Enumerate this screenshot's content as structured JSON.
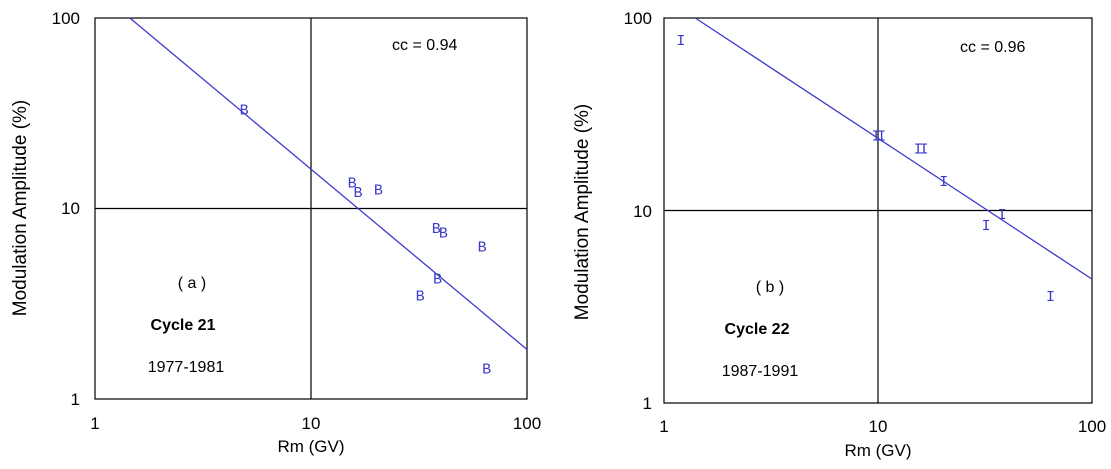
{
  "chart_data": [
    {
      "type": "scatter",
      "panel_label": "( a )",
      "cycle_label": "Cycle 21",
      "years_label": "1977-1981",
      "cc_label": "cc = 0.94",
      "xlabel": "Rm (GV)",
      "ylabel": "Modulation Amplitude (%)",
      "xscale": "log",
      "yscale": "log",
      "xlim": [
        1,
        100
      ],
      "ylim": [
        1,
        100
      ],
      "xticks": [
        "1",
        "10",
        "100"
      ],
      "yticks": [
        "1",
        "10",
        "100"
      ],
      "reference_lines": {
        "x": 10,
        "y": 10
      },
      "marker_char": "B",
      "color": "#3a3acc",
      "points": [
        {
          "x": 4.9,
          "y": 33
        },
        {
          "x": 15.5,
          "y": 13.7
        },
        {
          "x": 16.5,
          "y": 12.2
        },
        {
          "x": 20.5,
          "y": 12.6
        },
        {
          "x": 38,
          "y": 7.9
        },
        {
          "x": 41,
          "y": 7.5
        },
        {
          "x": 62,
          "y": 6.3
        },
        {
          "x": 38.5,
          "y": 4.3
        },
        {
          "x": 32,
          "y": 3.5
        },
        {
          "x": 65,
          "y": 1.45
        }
      ],
      "fit_line": {
        "x": [
          1.45,
          100
        ],
        "y": [
          100,
          1.82
        ]
      }
    },
    {
      "type": "scatter",
      "panel_label": "( b )",
      "cycle_label": "Cycle 22",
      "years_label": "1987-1991",
      "cc_label": "cc = 0.96",
      "xlabel": "Rm (GV)",
      "ylabel": "Modulation Amplitude (%)",
      "xscale": "log",
      "yscale": "log",
      "xlim": [
        1,
        100
      ],
      "ylim": [
        1,
        100
      ],
      "xticks": [
        "1",
        "10",
        "100"
      ],
      "yticks": [
        "1",
        "10",
        "100"
      ],
      "reference_lines": {
        "x": 10,
        "y": 10
      },
      "marker_char": "I",
      "color": "#3a3acc",
      "points": [
        {
          "x": 1.2,
          "y": 77
        },
        {
          "x": 9.8,
          "y": 24.5
        },
        {
          "x": 10.4,
          "y": 24.5
        },
        {
          "x": 15.4,
          "y": 21
        },
        {
          "x": 16.4,
          "y": 21
        },
        {
          "x": 20.3,
          "y": 14.2
        },
        {
          "x": 32,
          "y": 8.4
        },
        {
          "x": 38,
          "y": 9.6
        },
        {
          "x": 64,
          "y": 3.6
        }
      ],
      "fit_line": {
        "x": [
          1.4,
          100
        ],
        "y": [
          100,
          4.4
        ]
      }
    }
  ]
}
